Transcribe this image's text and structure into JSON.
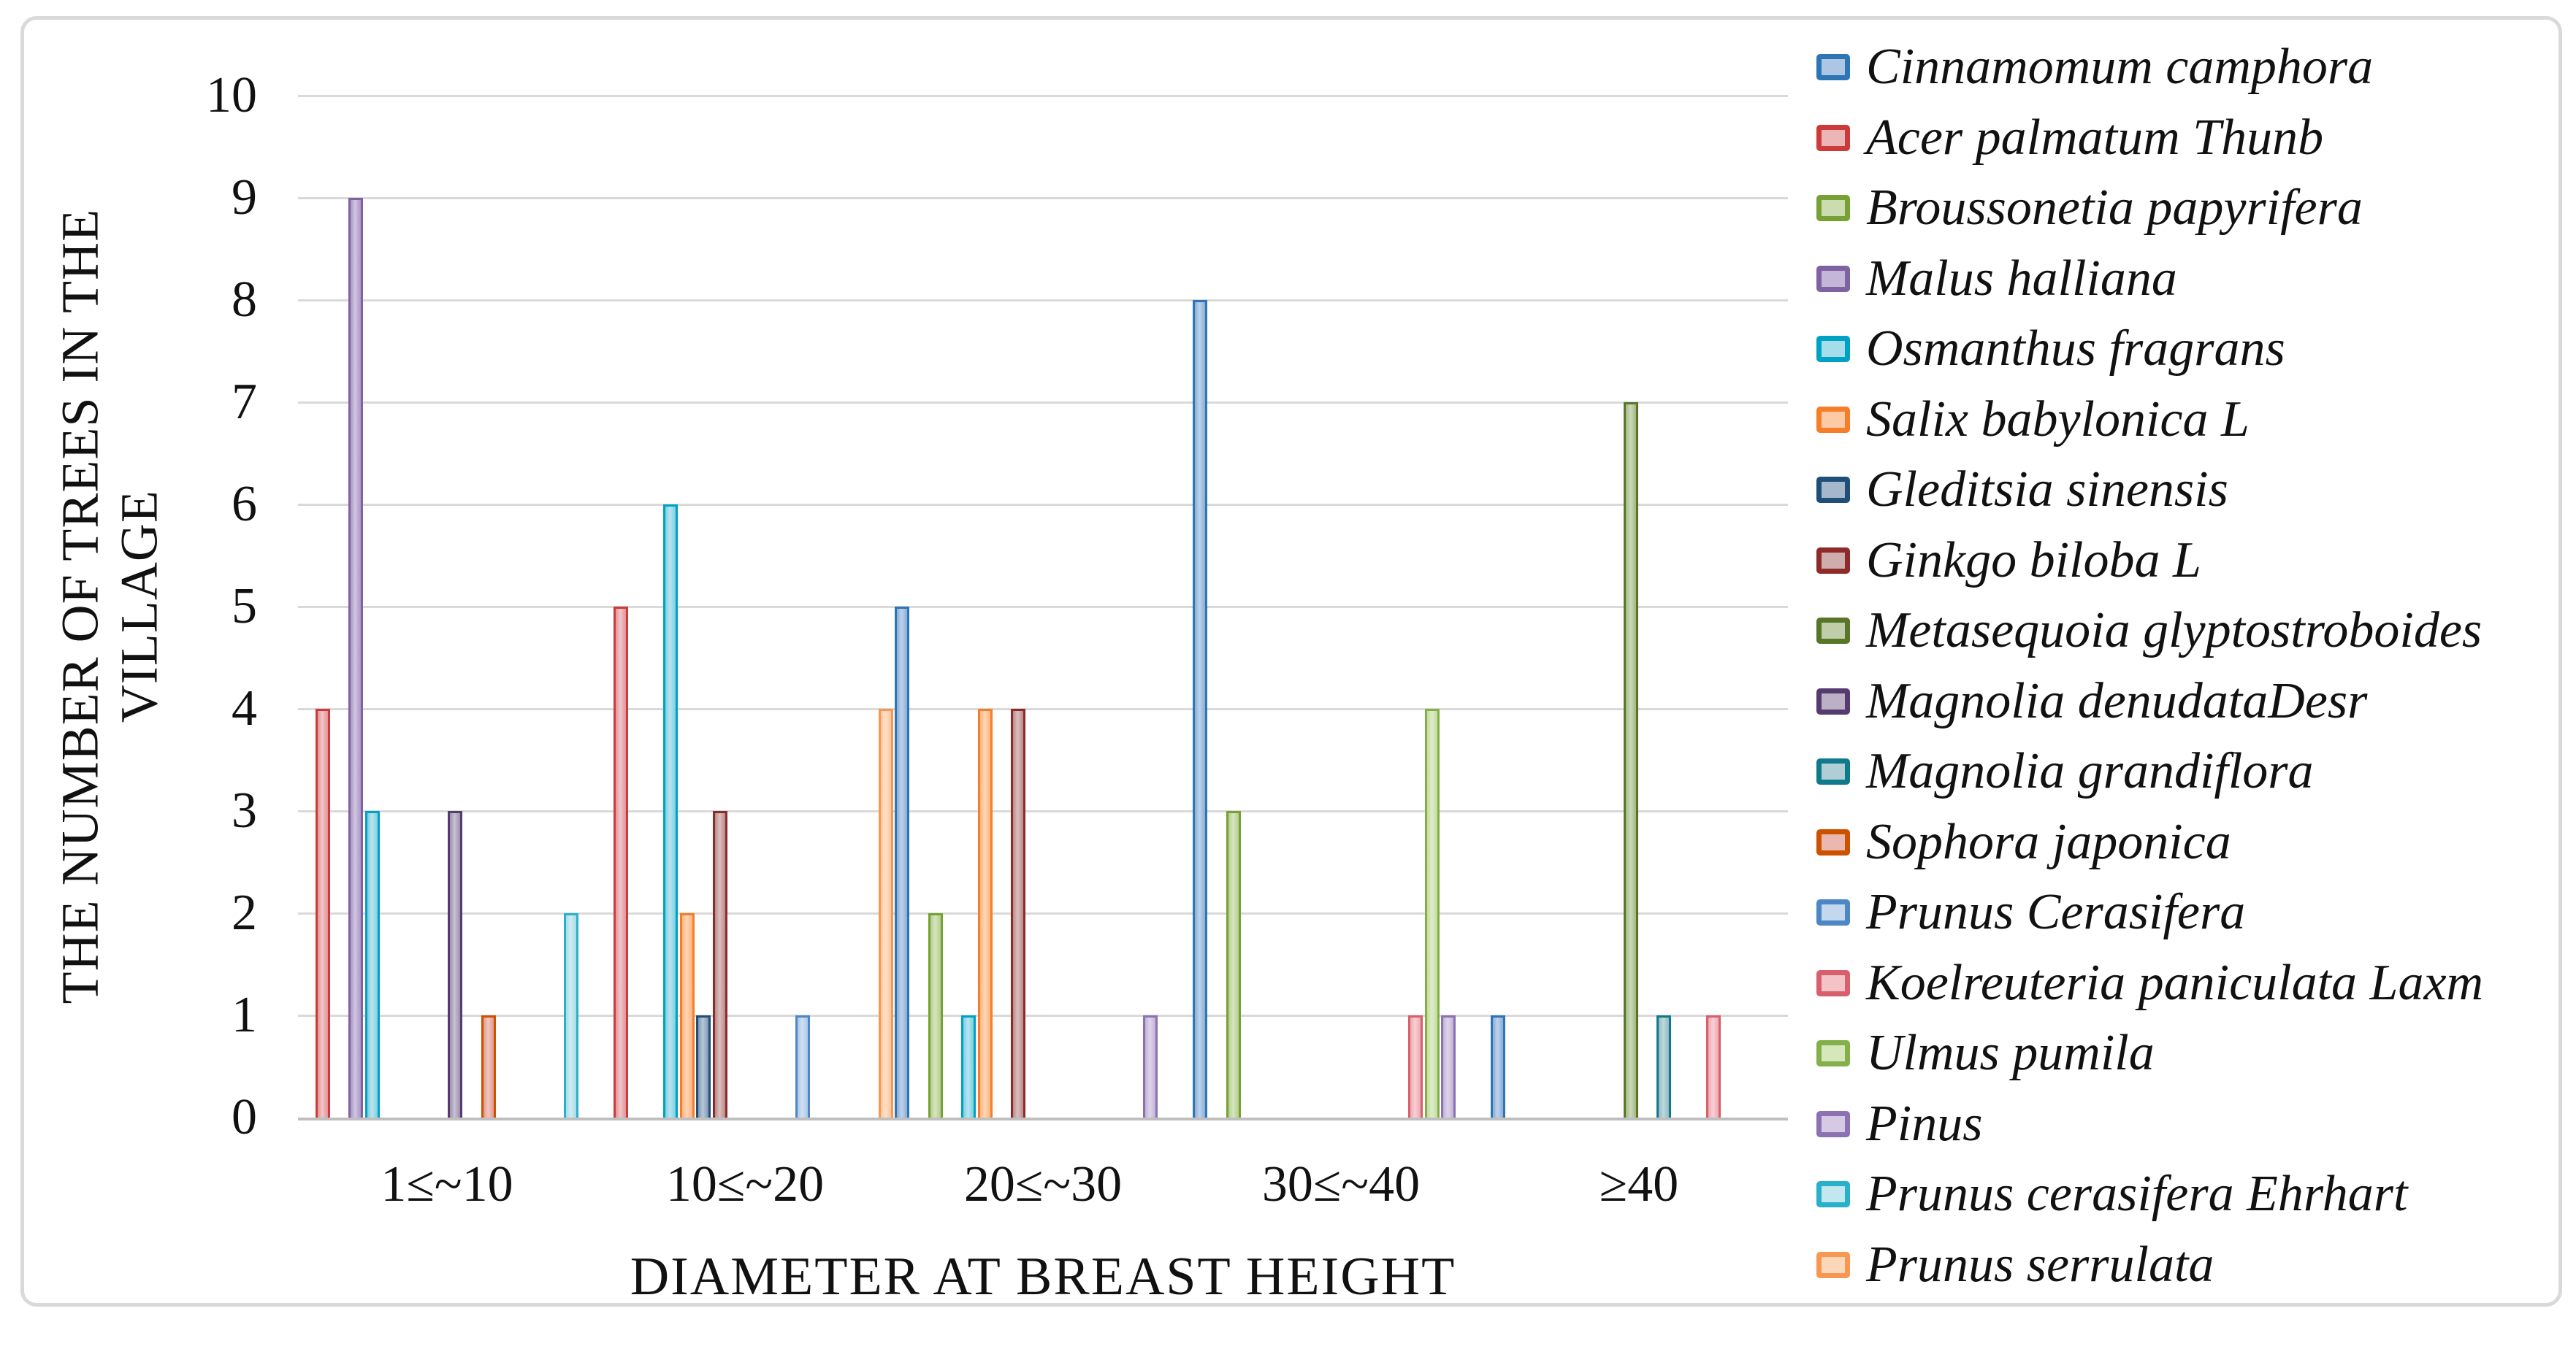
{
  "chart_data": {
    "type": "bar",
    "title": "",
    "xlabel": "DIAMETER AT BREAST HEIGHT",
    "ylabel": "THE NUMBER OF TREES IN THE VILLAGE",
    "ylabel_line1": "THE NUMBER OF TREES IN THE",
    "ylabel_line2": "VILLAGE",
    "categories": [
      "1≤~10",
      "10≤~20",
      "20≤~30",
      "30≤~40",
      "≥40"
    ],
    "yticks": [
      0,
      1,
      2,
      3,
      4,
      5,
      6,
      7,
      8,
      9,
      10
    ],
    "ylim": [
      0,
      10
    ],
    "grid": true,
    "legend_position": "right",
    "grid_color": "#D9D9D9",
    "axis_line_color": "#BFBFBF",
    "frame_color": "#D9D9D9",
    "text_color": "#111111",
    "series": [
      {
        "name": "Cinnamomum camphora",
        "border": "#2E75B6",
        "fill": "#89AED8",
        "values": [
          0,
          0,
          5,
          8,
          1
        ]
      },
      {
        "name": "Acer palmatum Thunb",
        "border": "#CC3A3A",
        "fill": "#E49599",
        "values": [
          4,
          5,
          0,
          0,
          0
        ]
      },
      {
        "name": "Broussonetia papyrifera",
        "border": "#77A233",
        "fill": "#B5CF8E",
        "values": [
          0,
          0,
          2,
          3,
          0
        ]
      },
      {
        "name": "Malus halliana",
        "border": "#7E62A1",
        "fill": "#AB97C6",
        "values": [
          9,
          0,
          0,
          0,
          0
        ]
      },
      {
        "name": "Osmanthus fragrans",
        "border": "#00A2C4",
        "fill": "#7ECFE2",
        "values": [
          3,
          6,
          1,
          0,
          0
        ]
      },
      {
        "name": "Salix babylonica L",
        "border": "#F67E28",
        "fill": "#FBB57E",
        "values": [
          0,
          2,
          4,
          0,
          0
        ]
      },
      {
        "name": "Gleditsia sinensis",
        "border": "#1F4E79",
        "fill": "#7E99B4",
        "values": [
          0,
          1,
          0,
          0,
          0
        ]
      },
      {
        "name": "Ginkgo biloba L",
        "border": "#8E2A2A",
        "fill": "#BC8A8A",
        "values": [
          0,
          3,
          4,
          0,
          0
        ]
      },
      {
        "name": "Metasequoia glyptostroboides",
        "border": "#587528",
        "fill": "#A3B982",
        "values": [
          0,
          0,
          0,
          0,
          7
        ]
      },
      {
        "name": "Magnolia denudataDesr",
        "border": "#553B6E",
        "fill": "#9C8FAD",
        "values": [
          3,
          0,
          0,
          0,
          0
        ]
      },
      {
        "name": "Magnolia grandiflora",
        "border": "#0F7A8C",
        "fill": "#8FB9C2",
        "values": [
          0,
          0,
          0,
          0,
          1
        ]
      },
      {
        "name": "Sophora japonica",
        "border": "#CC5200",
        "fill": "#E39A8C",
        "values": [
          1,
          0,
          0,
          0,
          0
        ]
      },
      {
        "name": "Prunus Cerasifera",
        "border": "#4E87C5",
        "fill": "#A9C6E6",
        "values": [
          0,
          1,
          0,
          0,
          0
        ]
      },
      {
        "name": "Koelreuteria paniculata Laxm",
        "border": "#D8606D",
        "fill": "#EFA9B0",
        "values": [
          0,
          0,
          0,
          1,
          1
        ]
      },
      {
        "name": "Ulmus pumila",
        "border": "#84B04A",
        "fill": "#C3DD9E",
        "values": [
          0,
          0,
          0,
          4,
          0
        ]
      },
      {
        "name": "Pinus",
        "border": "#8D72B3",
        "fill": "#C3B2D8",
        "values": [
          0,
          0,
          1,
          1,
          0
        ]
      },
      {
        "name": "Prunus cerasifera Ehrhart",
        "border": "#29B1CC",
        "fill": "#A8DCE8",
        "values": [
          2,
          0,
          0,
          0,
          0
        ]
      },
      {
        "name": "Prunus serrulata",
        "border": "#F79752",
        "fill": "#FBC79C",
        "values": [
          0,
          4,
          0,
          0,
          0
        ]
      }
    ]
  }
}
